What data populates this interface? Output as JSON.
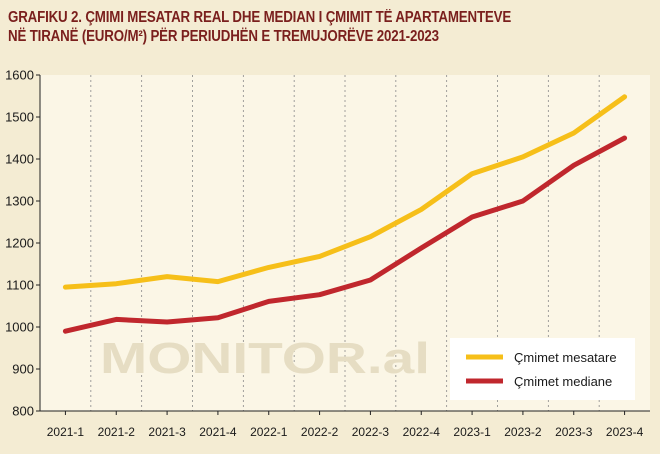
{
  "title": {
    "line1": "GRAFIKU 2. ÇMIMI MESATAR REAL DHE MEDIAN I ÇMIMIT TË APARTAMENTEVE",
    "line2": "NË TIRANË (EURO/M²) PËR PERIUDHËN E TREMUJORËVE 2021-2023"
  },
  "watermark": "MONITOR.al",
  "colors": {
    "background": "#f4ecd3",
    "plot_background": "#fbf6e6",
    "title": "#7a1f1d",
    "mean": "#f6bf19",
    "median": "#c0272d",
    "grid": "#8a8a8a"
  },
  "chart_data": {
    "type": "line",
    "categories": [
      "2021-1",
      "2021-2",
      "2021-3",
      "2021-4",
      "2022-1",
      "2022-2",
      "2022-3",
      "2022-4",
      "2023-1",
      "2023-2",
      "2023-3",
      "2023-4"
    ],
    "series": [
      {
        "name": "Çmimet mesatare",
        "color": "#f6bf19",
        "values": [
          1095,
          1103,
          1120,
          1108,
          1142,
          1168,
          1215,
          1280,
          1365,
          1405,
          1462,
          1548
        ]
      },
      {
        "name": "Çmimet mediane",
        "color": "#c0272d",
        "values": [
          990,
          1018,
          1012,
          1022,
          1061,
          1077,
          1112,
          1188,
          1262,
          1300,
          1385,
          1450
        ]
      }
    ],
    "ylim": [
      800,
      1600
    ],
    "yticks": [
      800,
      900,
      1000,
      1100,
      1200,
      1300,
      1400,
      1500,
      1600
    ],
    "grid": "vertical dashed",
    "legend_position": "bottom-right"
  }
}
